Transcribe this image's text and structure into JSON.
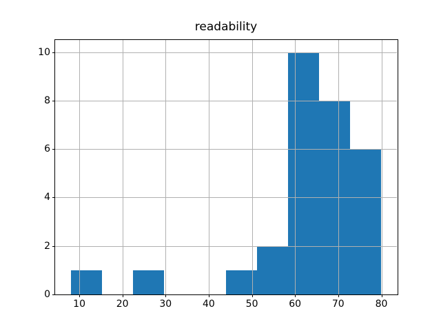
{
  "figure": {
    "title": "readability",
    "background_color": "#ffffff"
  },
  "colors": {
    "bar_fill": "#1f77b4",
    "grid": "#b0b0b0",
    "spine": "#000000",
    "text": "#000000"
  },
  "chart_data": {
    "type": "bar",
    "subtype": "histogram",
    "title": "readability",
    "xlabel": "",
    "ylabel": "",
    "bin_edges": [
      8.0,
      15.2,
      22.4,
      29.6,
      36.8,
      44.0,
      51.2,
      58.4,
      65.6,
      72.8,
      80.0
    ],
    "counts": [
      1,
      0,
      1,
      0,
      0,
      1,
      2,
      10,
      8,
      6
    ],
    "x_ticks": [
      10,
      20,
      30,
      40,
      50,
      60,
      70,
      80
    ],
    "y_ticks": [
      0,
      2,
      4,
      6,
      8,
      10
    ],
    "xlim": [
      4.4,
      83.6
    ],
    "ylim": [
      0,
      10.5
    ],
    "grid": true,
    "grid_above_bars": true,
    "legend": false
  }
}
